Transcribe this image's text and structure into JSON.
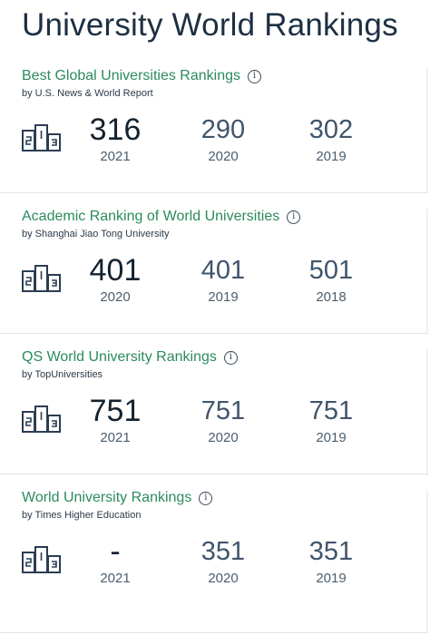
{
  "header": {
    "title": "University World Rankings"
  },
  "rankings": [
    {
      "title": "Best Global Universities Rankings",
      "source": "by U.S. News & World Report",
      "entries": [
        {
          "value": "316",
          "year": "2021"
        },
        {
          "value": "290",
          "year": "2020"
        },
        {
          "value": "302",
          "year": "2019"
        }
      ]
    },
    {
      "title": "Academic Ranking of World Universities",
      "source": "by Shanghai Jiao Tong University",
      "entries": [
        {
          "value": "401",
          "year": "2020"
        },
        {
          "value": "401",
          "year": "2019"
        },
        {
          "value": "501",
          "year": "2018"
        }
      ]
    },
    {
      "title": "QS World University Rankings",
      "source": "by TopUniversities",
      "entries": [
        {
          "value": "751",
          "year": "2021"
        },
        {
          "value": "751",
          "year": "2020"
        },
        {
          "value": "751",
          "year": "2019"
        }
      ]
    },
    {
      "title": "World University Rankings",
      "source": "by Times Higher Education",
      "entries": [
        {
          "value": "-",
          "year": "2021"
        },
        {
          "value": "351",
          "year": "2020"
        },
        {
          "value": "351",
          "year": "2019"
        }
      ]
    }
  ],
  "icons": {
    "info": "info-icon",
    "podium": "podium-icon"
  },
  "colors": {
    "section_title": "#2c8a5e",
    "page_title": "#1d2f43",
    "value": "#40556b"
  }
}
